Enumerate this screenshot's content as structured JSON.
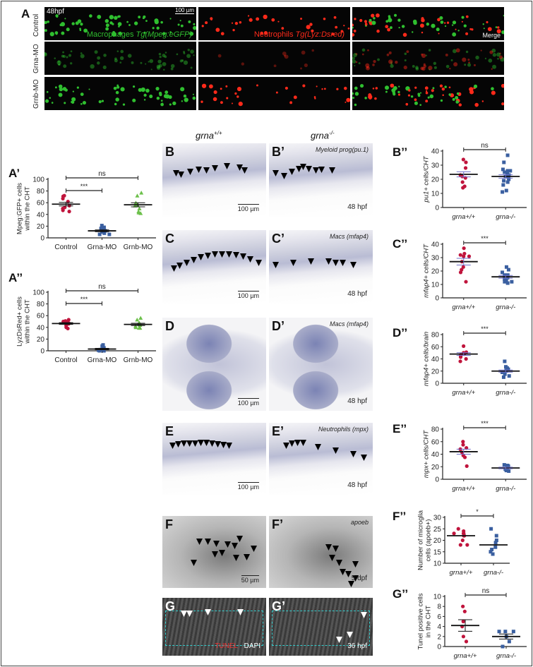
{
  "panel_A": {
    "label": "A",
    "timepoint": "48hpf",
    "scale_bar": "100 µm",
    "rows": [
      "Control",
      "Grna-MO",
      "Grnb-MO"
    ],
    "green_caption": {
      "text": "Macrophages ",
      "italic": "Tg(Mpeg:eGFP)"
    },
    "red_caption": {
      "text": "Neutrophils ",
      "italic": "Tg(Lyz:Dsred)"
    },
    "merge_caption": "Merge",
    "colors": {
      "green": "#2fbf2f",
      "red": "#ff2a1a"
    }
  },
  "genotypes": {
    "wt": "grna",
    "wt_sup": "+/+",
    "mut": "grna",
    "mut_sup": "-/-"
  },
  "micrographs": [
    {
      "label": "B",
      "scale": "100 µm"
    },
    {
      "label": "B’",
      "caption": "Myeloid prog(pu.1)",
      "hpf": "48 hpf"
    },
    {
      "label": "C",
      "scale": "100 µm"
    },
    {
      "label": "C’",
      "caption": "Macs (mfap4)",
      "hpf": "48 hpf"
    },
    {
      "label": "D",
      "scale": "100 µm"
    },
    {
      "label": "D’",
      "caption": "Macs (mfap4)",
      "hpf": "48 hpf"
    },
    {
      "label": "E",
      "scale": "100 µm"
    },
    {
      "label": "E’",
      "caption": "Neutrophils (mpx)",
      "hpf": "48 hpf"
    },
    {
      "label": "F",
      "scale": "50 µm"
    },
    {
      "label": "F’",
      "caption": "apoeb",
      "hpf": "5 dpf"
    },
    {
      "label": "G",
      "tunel": "TUNEL",
      "dapi": "DAPI"
    },
    {
      "label": "G’",
      "hpf": "36 hpf"
    }
  ],
  "chart_data": [
    {
      "id": "A1",
      "label": "A’",
      "type": "scatter",
      "ylabel": [
        "Mpeg:GFP+ cells",
        "within the CHT"
      ],
      "ylim": [
        0,
        100
      ],
      "yticks": [
        0,
        20,
        40,
        60,
        80,
        100
      ],
      "categories": [
        "Control",
        "Grna-MO",
        "Grnb-MO"
      ],
      "groups": [
        {
          "name": "Control",
          "marker": "circle",
          "color": "#c0143c",
          "values": [
            72,
            71,
            67,
            62,
            55,
            52,
            50,
            47,
            45
          ],
          "mean": 57.5,
          "sem": 3.0
        },
        {
          "name": "Grna-MO",
          "marker": "square",
          "color": "#3a5fa0",
          "values": [
            21,
            18,
            16,
            15,
            13,
            12,
            10,
            8,
            6,
            6
          ],
          "mean": 12,
          "sem": 1.5
        },
        {
          "name": "Grnb-MO",
          "marker": "triangle",
          "color": "#6cc04a",
          "values": [
            77,
            72,
            60,
            56,
            55,
            50,
            45,
            43,
            42
          ],
          "mean": 56.5,
          "sem": 3.5
        }
      ],
      "significance": [
        {
          "from": 0,
          "to": 2,
          "text": "ns"
        },
        {
          "from": 0,
          "to": 1,
          "text": "***"
        }
      ]
    },
    {
      "id": "A2",
      "label": "A’’",
      "type": "scatter",
      "ylabel": [
        "LyzDsRed+ cells",
        "within the CHT"
      ],
      "ylim": [
        0,
        100
      ],
      "yticks": [
        0,
        20,
        40,
        60,
        80,
        100
      ],
      "categories": [
        "Control",
        "Grna-MO",
        "Grnb-MO"
      ],
      "groups": [
        {
          "name": "Control",
          "marker": "circle",
          "color": "#c0143c",
          "values": [
            53,
            51,
            50,
            49,
            47,
            46,
            45,
            43,
            40,
            38
          ],
          "mean": 46.5,
          "sem": 1.5
        },
        {
          "name": "Grna-MO",
          "marker": "square",
          "color": "#3a5fa0",
          "values": [
            10,
            8,
            5,
            3,
            2,
            1,
            0,
            0
          ],
          "mean": 3,
          "sem": 1.2
        },
        {
          "name": "Grnb-MO",
          "marker": "triangle",
          "color": "#6cc04a",
          "values": [
            56,
            53,
            48,
            45,
            44,
            42,
            40,
            39,
            39
          ],
          "mean": 45,
          "sem": 2.0
        }
      ],
      "significance": [
        {
          "from": 0,
          "to": 2,
          "text": "ns"
        },
        {
          "from": 0,
          "to": 1,
          "text": "***"
        }
      ]
    },
    {
      "id": "B",
      "label": "B’’",
      "type": "scatter",
      "ylabel": [
        "pu1+ cells/CHT"
      ],
      "ylim": [
        0,
        40
      ],
      "yticks": [
        0,
        10,
        20,
        30,
        40
      ],
      "categories": [
        "grna+/+",
        "grna-/-"
      ],
      "groups": [
        {
          "name": "grna+/+",
          "marker": "circle",
          "color": "#c0143c",
          "values": [
            34,
            32,
            28,
            23,
            22,
            21,
            18,
            15,
            14
          ],
          "mean": 23.5,
          "sem": 1.8
        },
        {
          "name": "grna-/-",
          "marker": "square",
          "color": "#3a5fa0",
          "values": [
            37,
            32,
            27,
            26,
            26,
            25,
            24,
            23,
            22,
            22,
            21,
            20,
            19,
            18,
            16,
            12,
            11
          ],
          "mean": 22,
          "sem": 1.2
        }
      ],
      "significance": [
        {
          "from": 0,
          "to": 1,
          "text": "ns"
        }
      ]
    },
    {
      "id": "C",
      "label": "C’’",
      "type": "scatter",
      "ylabel": [
        "mfap4+ cells/CHT"
      ],
      "ylim": [
        0,
        40
      ],
      "yticks": [
        0,
        10,
        20,
        30,
        40
      ],
      "categories": [
        "grna+/+",
        "grna-/-"
      ],
      "groups": [
        {
          "name": "grna+/+",
          "marker": "circle",
          "color": "#c0143c",
          "values": [
            37,
            33,
            32,
            31,
            31,
            27,
            23,
            21,
            19,
            12
          ],
          "mean": 27,
          "sem": 2.5
        },
        {
          "name": "grna-/-",
          "marker": "square",
          "color": "#3a5fa0",
          "values": [
            23,
            21,
            19,
            17,
            17,
            16,
            15,
            14,
            13,
            12,
            12,
            11
          ],
          "mean": 15.7,
          "sem": 1.0
        }
      ],
      "significance": [
        {
          "from": 0,
          "to": 1,
          "text": "***"
        }
      ]
    },
    {
      "id": "D",
      "label": "D’’",
      "type": "scatter",
      "ylabel": [
        "mfap4+ cells/brain"
      ],
      "ylim": [
        0,
        80
      ],
      "yticks": [
        0,
        20,
        40,
        60,
        80
      ],
      "categories": [
        "grna+/+",
        "grna-/-"
      ],
      "groups": [
        {
          "name": "grna+/+",
          "marker": "circle",
          "color": "#c0143c",
          "values": [
            61,
            51,
            50,
            48,
            47,
            45,
            43,
            40,
            36
          ],
          "mean": 48,
          "sem": 2.2
        },
        {
          "name": "grna-/-",
          "marker": "square",
          "color": "#3a5fa0",
          "values": [
            36,
            27,
            25,
            23,
            21,
            20,
            18,
            15,
            12,
            10
          ],
          "mean": 20,
          "sem": 1.8
        }
      ],
      "significance": [
        {
          "from": 0,
          "to": 1,
          "text": "***"
        }
      ]
    },
    {
      "id": "E",
      "label": "E’’",
      "type": "scatter",
      "ylabel": [
        "mpx+ cells/CHT"
      ],
      "ylim": [
        0,
        80
      ],
      "yticks": [
        0,
        20,
        40,
        60,
        80
      ],
      "categories": [
        "grna+/+",
        "grna-/-"
      ],
      "groups": [
        {
          "name": "grna+/+",
          "marker": "circle",
          "color": "#c0143c",
          "values": [
            60,
            55,
            50,
            48,
            43,
            38,
            35,
            21
          ],
          "mean": 44,
          "sem": 4.0
        },
        {
          "name": "grna-/-",
          "marker": "square",
          "color": "#3a5fa0",
          "values": [
            23,
            22,
            21,
            20,
            18,
            16,
            14,
            13
          ],
          "mean": 18,
          "sem": 1.3
        }
      ],
      "significance": [
        {
          "from": 0,
          "to": 1,
          "text": "***"
        }
      ]
    },
    {
      "id": "F",
      "label": "F’’",
      "type": "scatter",
      "ylabel": [
        "Number of microglia",
        "cells (apoeb+)"
      ],
      "ylim": [
        10,
        30
      ],
      "yticks": [
        10,
        15,
        20,
        25,
        30
      ],
      "categories": [
        "grna+/+",
        "grna-/-"
      ],
      "groups": [
        {
          "name": "grna+/+",
          "marker": "circle",
          "color": "#c0143c",
          "values": [
            25,
            24,
            23,
            23,
            23,
            22,
            22,
            20,
            18,
            18
          ],
          "mean": 22
        },
        {
          "name": "grna-/-",
          "marker": "square",
          "color": "#3a5fa0",
          "values": [
            25,
            22,
            20,
            19,
            17,
            16,
            15,
            14
          ],
          "mean": 18
        }
      ],
      "significance": [
        {
          "from": 0,
          "to": 1,
          "text": "*"
        }
      ]
    },
    {
      "id": "G",
      "label": "G’’",
      "type": "scatter",
      "ylabel": [
        "Tunel positive cells",
        "in the CHT"
      ],
      "ylim": [
        0,
        10
      ],
      "yticks": [
        0,
        2,
        4,
        6,
        8,
        10
      ],
      "categories": [
        "grna+/+",
        "grna-/-"
      ],
      "groups": [
        {
          "name": "grna+/+",
          "marker": "circle",
          "color": "#c0143c",
          "values": [
            8,
            7,
            5,
            4,
            2,
            1
          ],
          "mean": 4.2,
          "sem": 1.15
        },
        {
          "name": "grna-/-",
          "marker": "square",
          "color": "#3a5fa0",
          "values": [
            3,
            3,
            3,
            2,
            1,
            0
          ],
          "mean": 2,
          "sem": 0.5
        }
      ],
      "significance": [
        {
          "from": 0,
          "to": 1,
          "text": "ns"
        }
      ]
    }
  ]
}
